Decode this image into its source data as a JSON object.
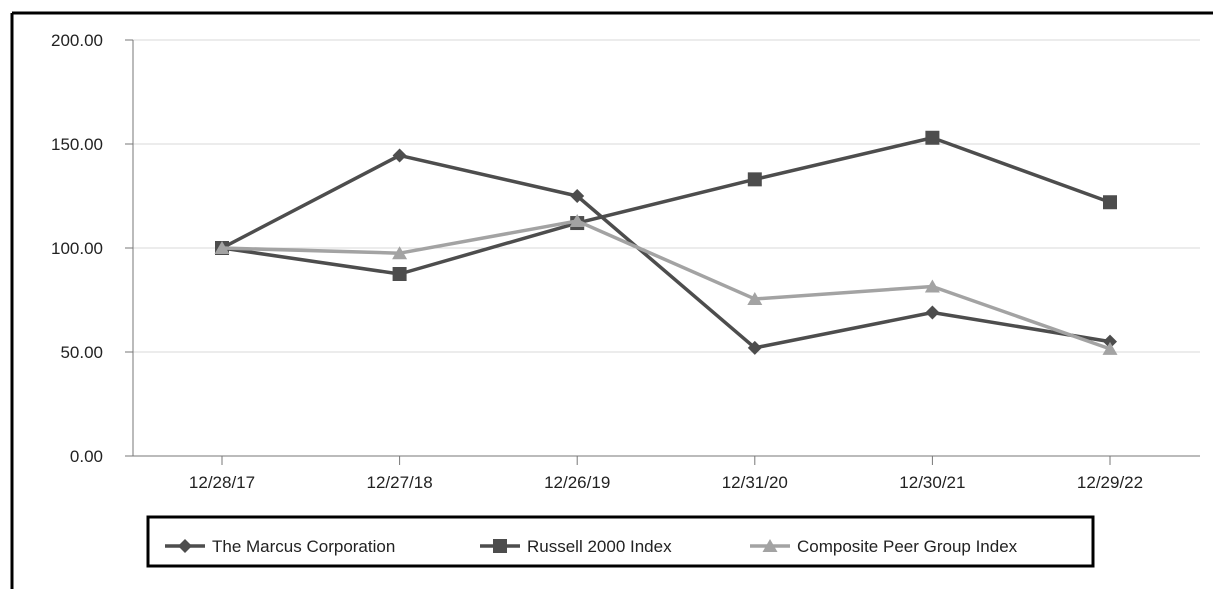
{
  "chart_data": {
    "type": "line",
    "title": "",
    "xlabel": "",
    "ylabel": "",
    "categories": [
      "12/28/17",
      "12/27/18",
      "12/26/19",
      "12/31/20",
      "12/30/21",
      "12/29/22"
    ],
    "y_ticks": [
      "0.00",
      "50.00",
      "100.00",
      "150.00",
      "200.00"
    ],
    "ylim": [
      0,
      200
    ],
    "grid": true,
    "legend_position": "bottom",
    "series": [
      {
        "name": "The Marcus Corporation",
        "marker": "diamond",
        "color": "#4d4d4d",
        "values": [
          100,
          144.5,
          125,
          52,
          69,
          55
        ]
      },
      {
        "name": "Russell 2000 Index",
        "marker": "square",
        "color": "#4d4d4d",
        "values": [
          100,
          87.5,
          112,
          133,
          153,
          122
        ]
      },
      {
        "name": "Composite Peer Group Index",
        "marker": "triangle",
        "color": "#a3a3a3",
        "values": [
          100,
          97.5,
          113,
          75.5,
          81.5,
          51.5
        ]
      }
    ]
  }
}
